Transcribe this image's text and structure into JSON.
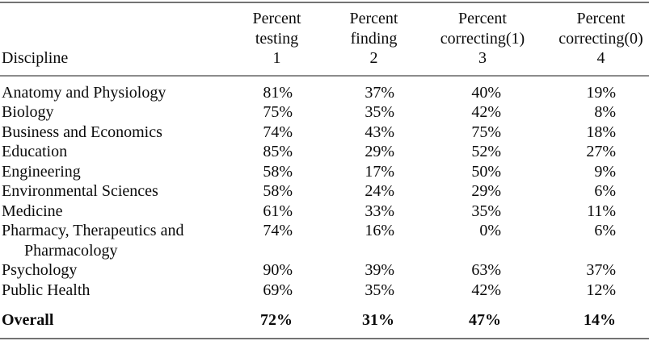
{
  "table": {
    "header": {
      "discipline": "Discipline",
      "columns": [
        "Percent\ntesting\n1",
        "Percent\nfinding\n2",
        "Percent\ncorrecting(1)\n3",
        "Percent\ncorrecting(0)\n4"
      ]
    },
    "rows": [
      {
        "discipline": "Anatomy and Physiology",
        "values": [
          "81%",
          "37%",
          "40%",
          "19%"
        ]
      },
      {
        "discipline": "Biology",
        "values": [
          "75%",
          "35%",
          "42%",
          "8%"
        ]
      },
      {
        "discipline": "Business and Economics",
        "values": [
          "74%",
          "43%",
          "75%",
          "18%"
        ]
      },
      {
        "discipline": "Education",
        "values": [
          "85%",
          "29%",
          "52%",
          "27%"
        ]
      },
      {
        "discipline": "Engineering",
        "values": [
          "58%",
          "17%",
          "50%",
          "9%"
        ]
      },
      {
        "discipline": "Environmental Sciences",
        "values": [
          "58%",
          "24%",
          "29%",
          "6%"
        ]
      },
      {
        "discipline": "Medicine",
        "values": [
          "61%",
          "33%",
          "35%",
          "11%"
        ]
      },
      {
        "discipline": "Pharmacy, Therapeutics and Pharmacology",
        "values": [
          "74%",
          "16%",
          "0%",
          "6%"
        ]
      },
      {
        "discipline": "Psychology",
        "values": [
          "90%",
          "39%",
          "63%",
          "37%"
        ]
      },
      {
        "discipline": "Public Health",
        "values": [
          "69%",
          "35%",
          "42%",
          "12%"
        ]
      }
    ],
    "overall": {
      "label": "Overall",
      "values": [
        "72%",
        "31%",
        "47%",
        "14%"
      ]
    }
  },
  "colors": {
    "text": "#0b0b0b",
    "rule_outer": "#737373",
    "rule_header": "#8c8c8c",
    "background": "#ffffff"
  }
}
